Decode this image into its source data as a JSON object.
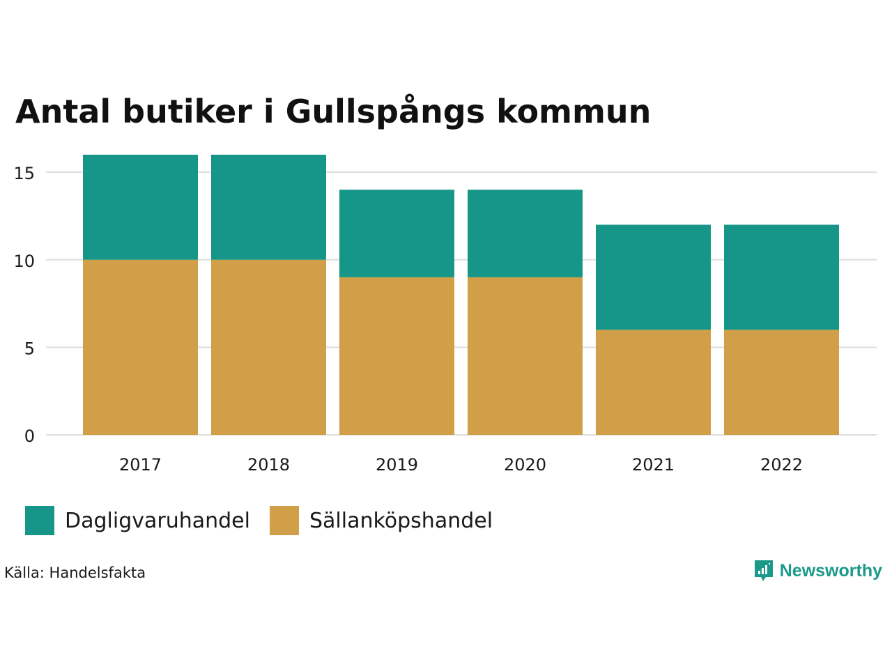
{
  "chart_data": {
    "type": "bar",
    "stacked": true,
    "title": "Antal butiker i Gullspångs kommun",
    "xlabel": "",
    "ylabel": "",
    "categories": [
      "2017",
      "2018",
      "2019",
      "2020",
      "2021",
      "2022"
    ],
    "series": [
      {
        "name": "Sällanköpshandel",
        "values": [
          10,
          10,
          9,
          9,
          6,
          6
        ],
        "color": "#d19f47"
      },
      {
        "name": "Dagligvaruhandel",
        "values": [
          6,
          6,
          5,
          5,
          6,
          6
        ],
        "color": "#159688"
      }
    ],
    "ylim": [
      0,
      16
    ],
    "yticks": [
      0,
      5,
      10,
      15
    ],
    "grid": true,
    "legend": "bottom-left"
  },
  "legend": {
    "items": [
      {
        "label": "Dagligvaruhandel",
        "color": "#159688"
      },
      {
        "label": "Sällanköpshandel",
        "color": "#d19f47"
      }
    ]
  },
  "source": "Källa: Handelsfakta",
  "logo": {
    "text": "Newsworthy",
    "icon": "newsworthy-logo-icon",
    "color": "#1b9a8a"
  }
}
